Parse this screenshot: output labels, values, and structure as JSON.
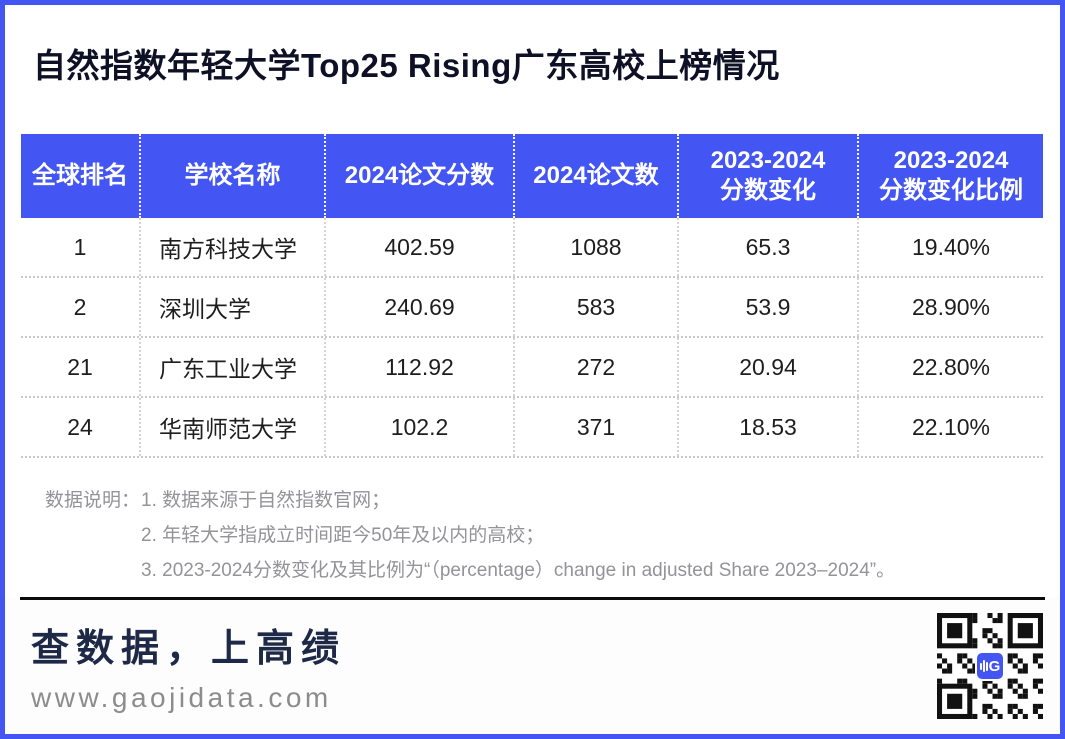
{
  "page": {
    "title": "自然指数年轻大学Top25 Rising广东高校上榜情况",
    "accent_color": "#4355f2",
    "divider_color": "#0b0b0b"
  },
  "chart_data": {
    "type": "table",
    "title": "自然指数年轻大学Top25 Rising广东高校上榜情况",
    "columns": [
      "全球排名",
      "学校名称",
      "2024论文分数",
      "2024论文数",
      "2023-2024\n分数变化",
      "2023-2024\n分数变化比例"
    ],
    "rows": [
      [
        "1",
        "南方科技大学",
        "402.59",
        "1088",
        "65.3",
        "19.40%"
      ],
      [
        "2",
        "深圳大学",
        "240.69",
        "583",
        "53.9",
        "28.90%"
      ],
      [
        "21",
        "广东工业大学",
        "112.92",
        "272",
        "20.94",
        "22.80%"
      ],
      [
        "24",
        "华南师范大学",
        "102.2",
        "371",
        "18.53",
        "22.10%"
      ]
    ],
    "header_bg": "#4355f2",
    "header_text_color": "#ffffff"
  },
  "notes": {
    "label": "数据说明：",
    "items": [
      "1. 数据来源于自然指数官网；",
      "2. 年轻大学指成立时间距今50年及以内的高校；",
      "3. 2023-2024分数变化及其比例为“（percentage）change in adjusted Share 2023–2024”。"
    ]
  },
  "footer": {
    "slogan": "查数据，上高绩",
    "website": "www.gaojidata.com",
    "qr_logo_letter": "G"
  }
}
